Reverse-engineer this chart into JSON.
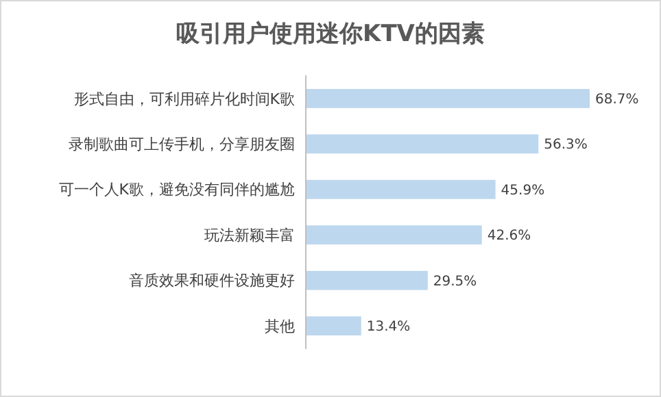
{
  "chart_data": {
    "type": "bar",
    "orientation": "horizontal",
    "title": "吸引用户使用迷你KTV的因素",
    "categories": [
      "形式自由，可利用碎片化时间K歌",
      "录制歌曲可上传手机，分享朋友圈",
      "可一个人K歌，避免没有同伴的尴尬",
      "玩法新颖丰富",
      "音质效果和硬件设施更好",
      "其他"
    ],
    "values": [
      68.7,
      56.3,
      45.9,
      42.6,
      29.5,
      13.4
    ],
    "value_labels": [
      "68.7%",
      "56.3%",
      "45.9%",
      "42.6%",
      "29.5%",
      "13.4%"
    ],
    "color": "#bdd7ee"
  }
}
